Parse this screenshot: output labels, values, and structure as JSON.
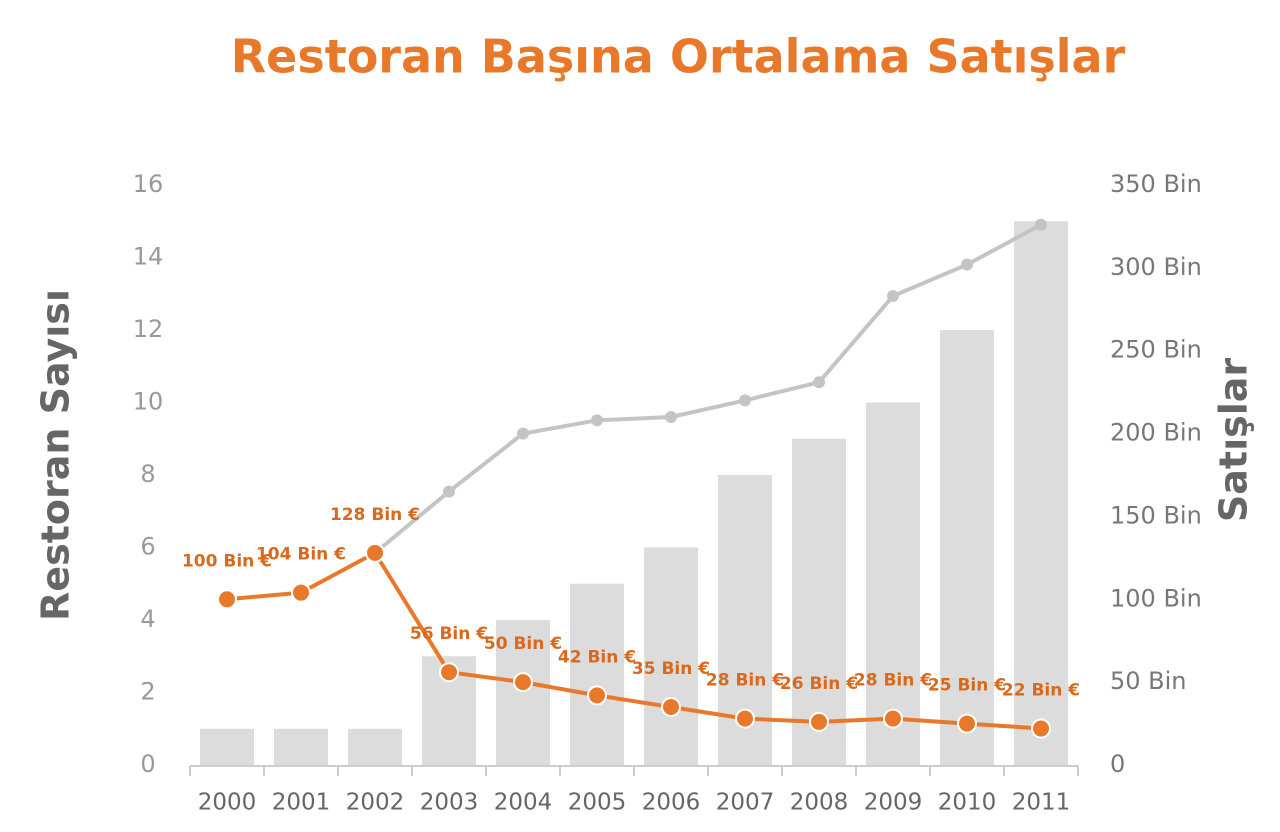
{
  "chart_data": {
    "type": "bar",
    "title": "Restoran Başına Ortalama Satışlar",
    "y_label": "Restoran Sayısı",
    "y2_label": "Satışlar",
    "categories": [
      "2000",
      "2001",
      "2002",
      "2003",
      "2004",
      "2005",
      "2006",
      "2007",
      "2008",
      "2009",
      "2010",
      "2011"
    ],
    "series": [
      {
        "type": "bar",
        "color": "#dcdcdc",
        "values": [
          1,
          1,
          1,
          3,
          4,
          5,
          6,
          8,
          9,
          10,
          12,
          15
        ]
      },
      {
        "type": "line",
        "axis": "y2",
        "color": "#c4c4c4",
        "values": [
          null,
          null,
          128000,
          165000,
          200000,
          208000,
          210000,
          220000,
          231000,
          283000,
          302000,
          326000
        ]
      },
      {
        "type": "line",
        "axis": "y2",
        "color": "#e8792b",
        "label_color": "#d9691c",
        "values": [
          100000,
          104000,
          128000,
          56000,
          50000,
          42000,
          35000,
          28000,
          26000,
          28000,
          25000,
          22000
        ],
        "value_labels": [
          "100 Bin €",
          "104 Bin €",
          "128 Bin €",
          "56 Bin €",
          "50 Bin €",
          "42 Bin €",
          "35 Bin €",
          "28 Bin €",
          "26 Bin €",
          "28 Bin €",
          "25 Bin €",
          "22 Bin €"
        ]
      }
    ],
    "ylim": [
      0,
      16
    ],
    "yticks": [
      0,
      2,
      4,
      6,
      8,
      10,
      12,
      14,
      16
    ],
    "y2lim": [
      0,
      350000
    ],
    "y2ticks": [
      0,
      {
        "value": 50000,
        "label": "50 Bin"
      },
      {
        "value": 100000,
        "label": "100 Bin"
      },
      {
        "value": 150000,
        "label": "150 Bin"
      },
      {
        "value": 200000,
        "label": "200 Bin"
      },
      {
        "value": 250000,
        "label": "250 Bin"
      },
      {
        "value": 300000,
        "label": "300 Bin"
      },
      {
        "value": 350000,
        "label": "350 Bin"
      }
    ],
    "grid": false
  }
}
